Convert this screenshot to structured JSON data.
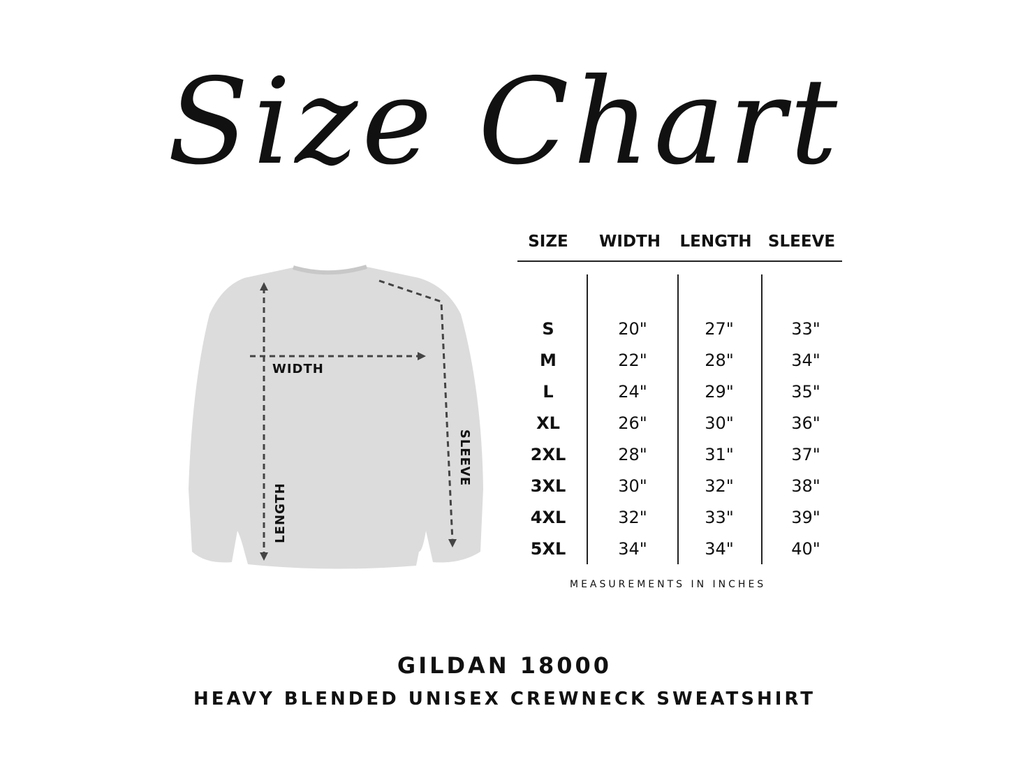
{
  "title": "Size Chart",
  "garment_labels": {
    "width": "WIDTH",
    "length": "LENGTH",
    "sleeve": "SLEEVE"
  },
  "table": {
    "headers": [
      "SIZE",
      "WIDTH",
      "LENGTH",
      "SLEEVE"
    ],
    "rows": [
      [
        "S",
        "20\"",
        "27\"",
        "33\""
      ],
      [
        "M",
        "22\"",
        "28\"",
        "34\""
      ],
      [
        "L",
        "24\"",
        "29\"",
        "35\""
      ],
      [
        "XL",
        "26\"",
        "30\"",
        "36\""
      ],
      [
        "2XL",
        "28\"",
        "31\"",
        "37\""
      ],
      [
        "3XL",
        "30\"",
        "32\"",
        "38\""
      ],
      [
        "4XL",
        "32\"",
        "33\"",
        "39\""
      ],
      [
        "5XL",
        "34\"",
        "34\"",
        "40\""
      ]
    ]
  },
  "note": "MEASUREMENTS IN INCHES",
  "footer": {
    "model": "GILDAN 18000",
    "description": "HEAVY BLENDED UNISEX CREWNECK SWEATSHIRT"
  },
  "colors": {
    "garment": "#dcdcdc",
    "text": "#111111"
  }
}
